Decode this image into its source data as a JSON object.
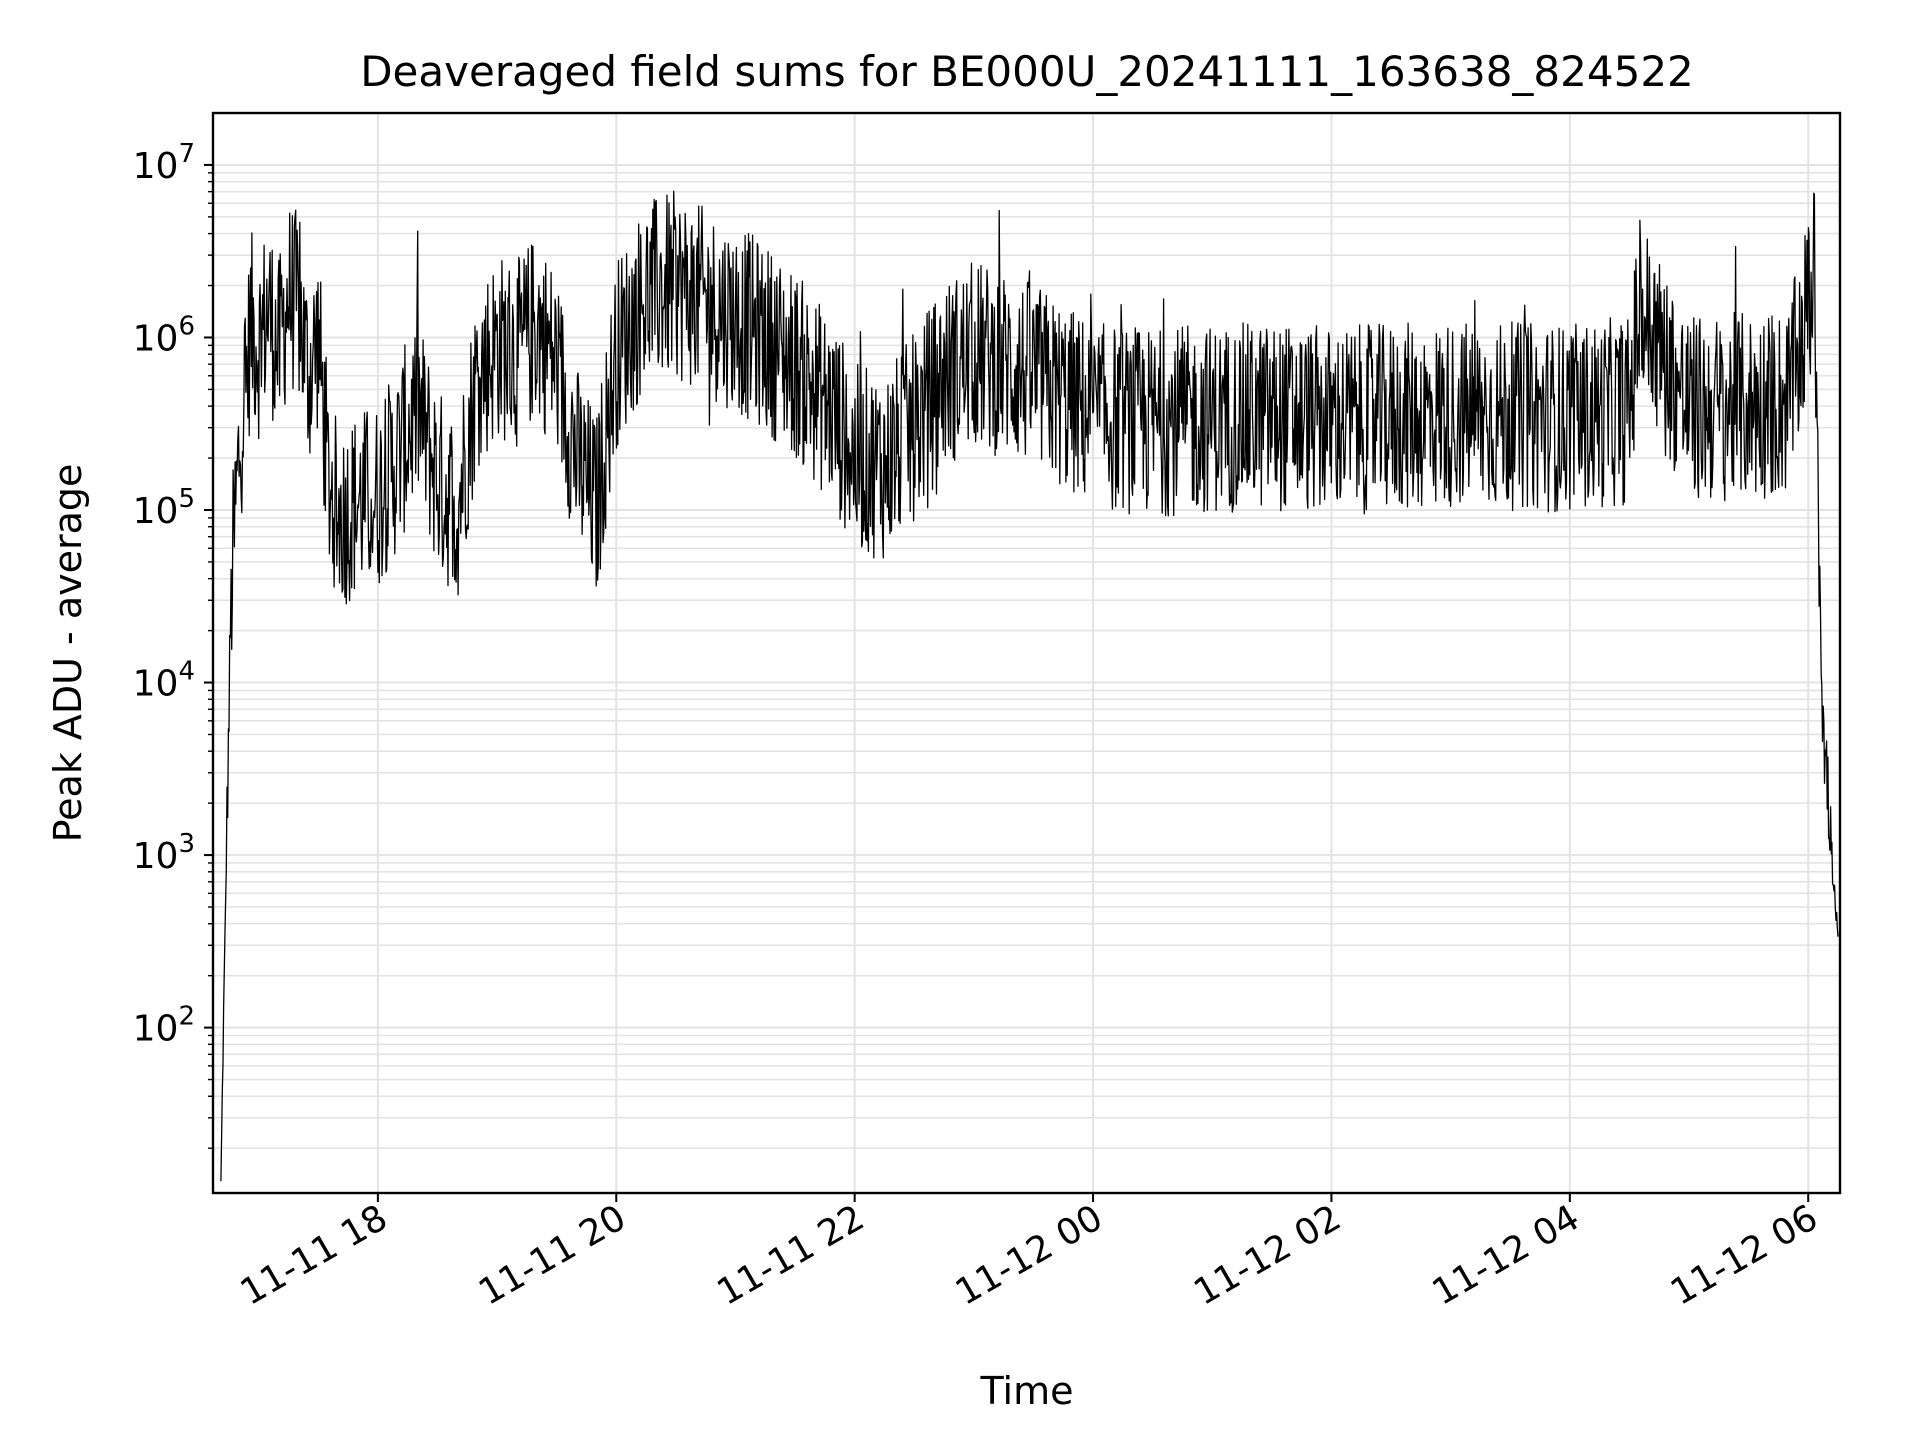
{
  "chart_data": {
    "type": "line",
    "title": "Deaveraged field sums for BE000U_20241111_163638_824522",
    "xlabel": "Time",
    "ylabel": "Peak ADU - average",
    "y_scale": "log",
    "grid": true,
    "legend": "none",
    "line_color": "#000000",
    "grid_color": "#e3e3e3",
    "xlim": [
      "2024-11-11 16:37",
      "2024-11-12 06:16"
    ],
    "ylim": [
      11,
      20000000
    ],
    "x_ticks": [
      {
        "value": "2024-11-11 18:00",
        "label": "11-11 18"
      },
      {
        "value": "2024-11-11 20:00",
        "label": "11-11 20"
      },
      {
        "value": "2024-11-11 22:00",
        "label": "11-11 22"
      },
      {
        "value": "2024-11-12 00:00",
        "label": "11-12 00"
      },
      {
        "value": "2024-11-12 02:00",
        "label": "11-12 02"
      },
      {
        "value": "2024-11-12 04:00",
        "label": "11-12 04"
      },
      {
        "value": "2024-11-12 06:00",
        "label": "11-12 06"
      }
    ],
    "y_ticks": [
      {
        "value": 100,
        "base": "10",
        "exp": "2"
      },
      {
        "value": 1000,
        "base": "10",
        "exp": "3"
      },
      {
        "value": 10000,
        "base": "10",
        "exp": "4"
      },
      {
        "value": 100000,
        "base": "10",
        "exp": "5"
      },
      {
        "value": 1000000,
        "base": "10",
        "exp": "6"
      },
      {
        "value": 10000000,
        "base": "10",
        "exp": "7"
      }
    ],
    "series": [
      {
        "x": [
          "2024-11-11 16:41",
          "2024-11-11 16:42",
          "2024-11-11 16:43",
          "2024-11-11 16:44",
          "2024-11-11 16:45",
          "2024-11-11 16:46",
          "2024-11-11 16:48",
          "2024-11-11 16:50",
          "2024-11-11 16:52",
          "2024-11-11 16:54",
          "2024-11-11 16:56",
          "2024-11-11 17:00",
          "2024-11-11 17:05",
          "2024-11-11 17:10",
          "2024-11-11 17:15",
          "2024-11-11 17:20",
          "2024-11-11 17:25",
          "2024-11-11 17:30",
          "2024-11-11 17:35",
          "2024-11-11 17:40",
          "2024-11-11 17:45",
          "2024-11-11 17:50",
          "2024-11-11 18:00",
          "2024-11-11 18:10",
          "2024-11-11 18:20",
          "2024-11-11 18:30",
          "2024-11-11 18:40",
          "2024-11-11 18:50",
          "2024-11-11 19:00",
          "2024-11-11 19:10",
          "2024-11-11 19:20",
          "2024-11-11 19:30",
          "2024-11-11 19:40",
          "2024-11-11 19:50",
          "2024-11-11 20:00",
          "2024-11-11 20:15",
          "2024-11-11 20:30",
          "2024-11-11 20:45",
          "2024-11-11 21:00",
          "2024-11-11 21:15",
          "2024-11-11 21:30",
          "2024-11-11 21:40",
          "2024-11-11 21:50",
          "2024-11-11 22:00",
          "2024-11-11 22:15",
          "2024-11-11 22:30",
          "2024-11-11 22:45",
          "2024-11-11 23:00",
          "2024-11-11 23:15",
          "2024-11-11 23:30",
          "2024-11-11 23:45",
          "2024-11-12 00:00",
          "2024-11-12 00:30",
          "2024-11-12 01:00",
          "2024-11-12 01:30",
          "2024-11-12 02:00",
          "2024-11-12 02:30",
          "2024-11-12 03:00",
          "2024-11-12 03:30",
          "2024-11-12 04:00",
          "2024-11-12 04:30",
          "2024-11-12 04:35",
          "2024-11-12 05:00",
          "2024-11-12 05:30",
          "2024-11-12 05:50",
          "2024-11-12 06:00",
          "2024-11-12 06:03",
          "2024-11-12 06:05",
          "2024-11-12 06:07",
          "2024-11-12 06:09",
          "2024-11-12 06:11",
          "2024-11-12 06:13",
          "2024-11-12 06:15"
        ],
        "y": [
          12,
          70,
          300,
          1500,
          6000,
          30000,
          80000,
          200000,
          400000,
          600000,
          1200000,
          900000,
          1500000,
          800000,
          1800000,
          1500000,
          600000,
          1000000,
          150000,
          90000,
          100000,
          110000,
          120000,
          200000,
          400000,
          150000,
          100000,
          600000,
          900000,
          800000,
          1200000,
          700000,
          200000,
          100000,
          800000,
          1800000,
          2000000,
          1600000,
          1300000,
          1000000,
          700000,
          500000,
          350000,
          200000,
          180000,
          300000,
          600000,
          800000,
          700000,
          600000,
          450000,
          350000,
          320000,
          340000,
          350000,
          330000,
          340000,
          360000,
          350000,
          340000,
          380000,
          1500000,
          380000,
          400000,
          420000,
          1500000,
          2500000,
          200000,
          8000,
          3000,
          1500,
          600,
          300
        ]
      }
    ]
  }
}
